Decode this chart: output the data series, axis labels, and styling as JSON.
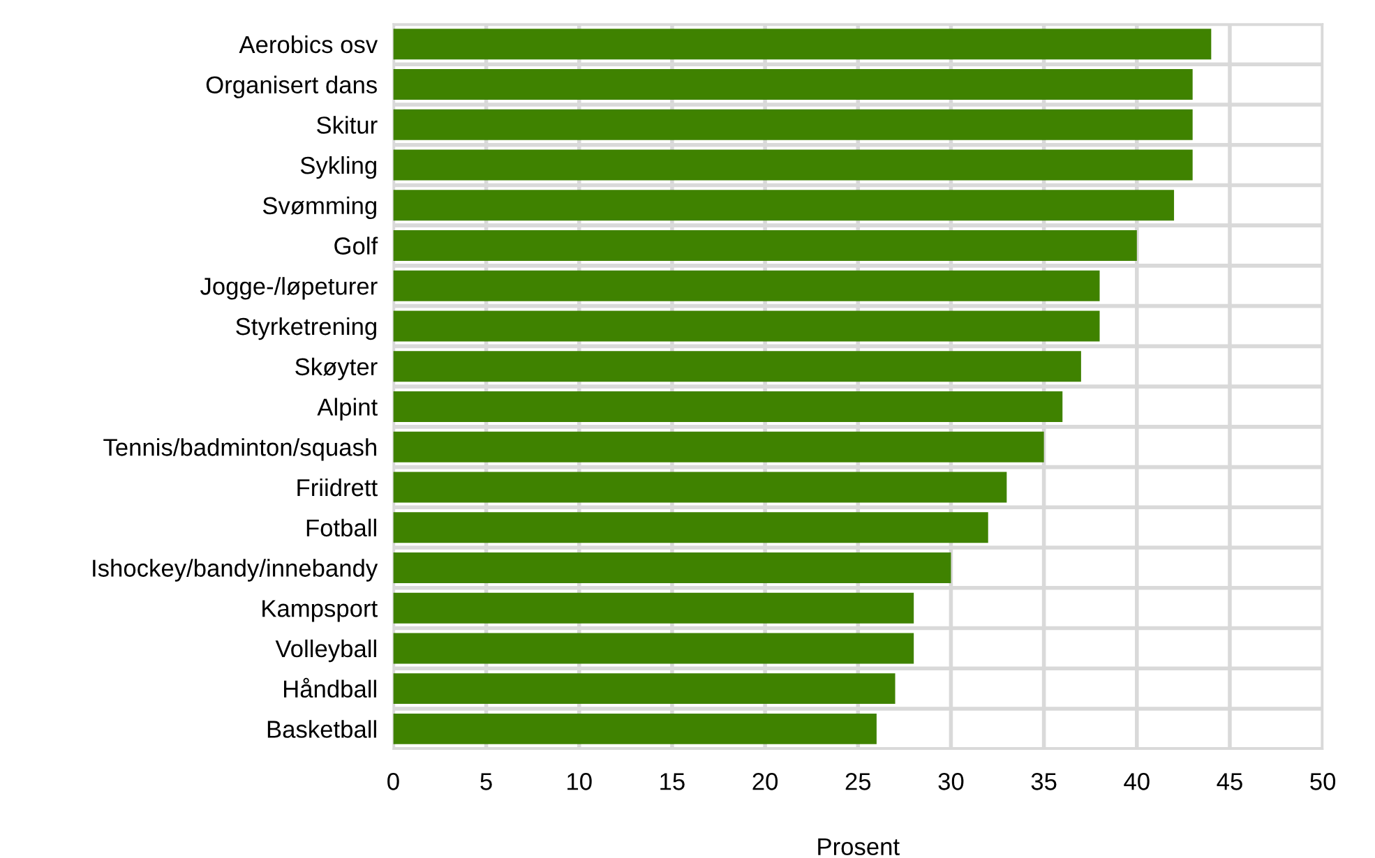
{
  "chart_data": {
    "type": "bar",
    "orientation": "horizontal",
    "xlabel": "Prosent",
    "categories": [
      "Aerobics osv",
      "Organisert dans",
      "Skitur",
      "Sykling",
      "Svømming",
      "Golf",
      "Jogge-/løpeturer",
      "Styrketrening",
      "Skøyter",
      "Alpint",
      "Tennis/badminton/squash",
      "Friidrett",
      "Fotball",
      "Ishockey/bandy/innebandy",
      "Kampsport",
      "Volleyball",
      "Håndball",
      "Basketball"
    ],
    "values": [
      44,
      43,
      43,
      43,
      42,
      40,
      38,
      38,
      37,
      36,
      35,
      33,
      32,
      30,
      28,
      28,
      27,
      26
    ],
    "color": "#3f8200",
    "xlim": [
      0,
      50
    ],
    "xticks": [
      0,
      5,
      10,
      15,
      20,
      25,
      30,
      35,
      40,
      45,
      50
    ],
    "grid": true
  }
}
